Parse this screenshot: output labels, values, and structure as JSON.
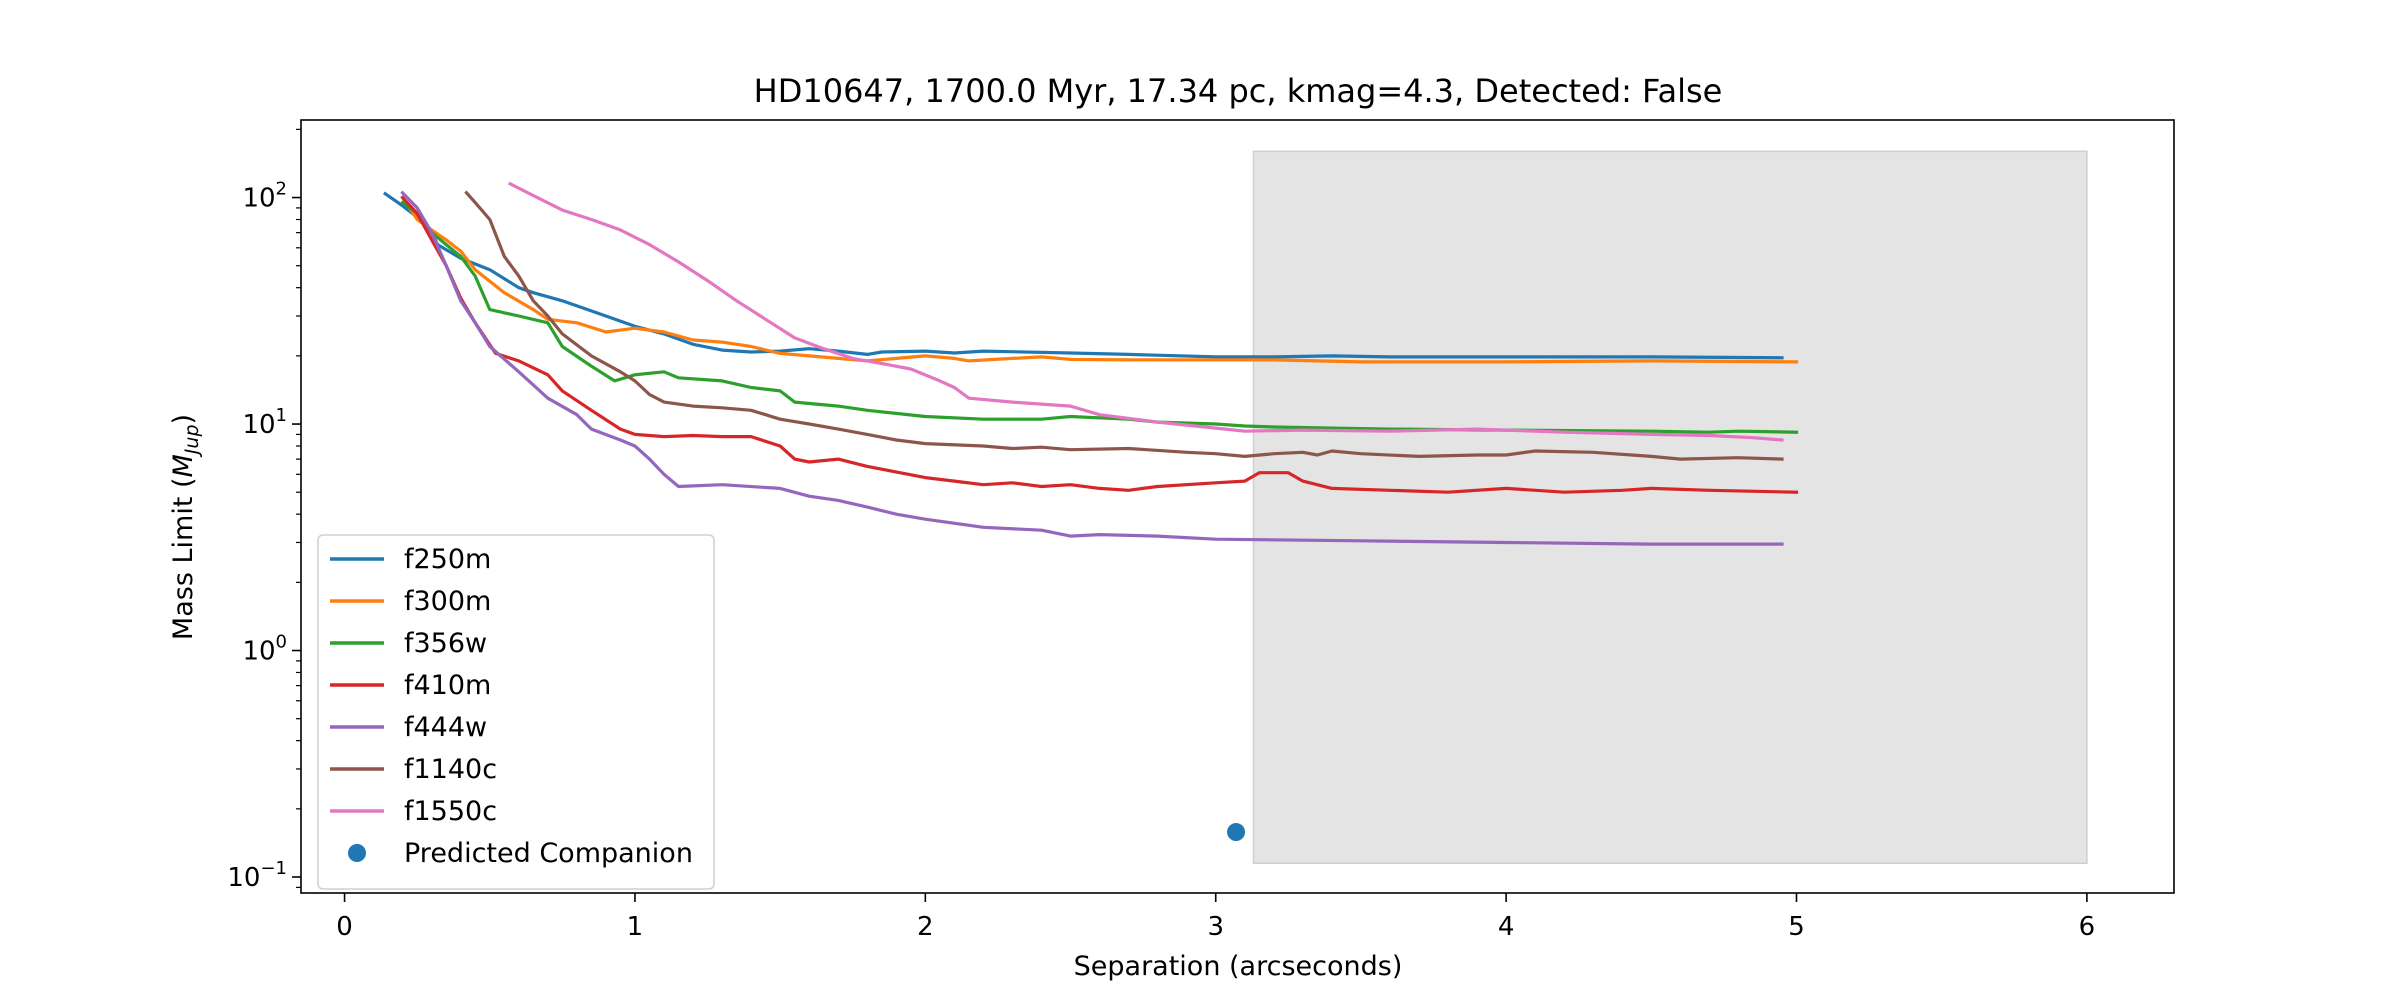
{
  "chart_data": {
    "type": "line",
    "title": "HD10647, 1700.0 Myr, 17.34 pc, kmag=4.3, Detected: False",
    "xlabel": "Separation (arcseconds)",
    "ylabel": "Mass Limit (M_Jup)",
    "ylabel_main": "Mass Limit (",
    "ylabel_sym": "M",
    "ylabel_sub": "Jup",
    "ylabel_close": ")",
    "xlim": [
      -0.15,
      6.3
    ],
    "ylim": [
      0.085,
      220
    ],
    "yscale": "log",
    "grid": false,
    "legend_position": "lower-left",
    "x_ticks": [
      {
        "value": 0,
        "label": "0"
      },
      {
        "value": 1,
        "label": "1"
      },
      {
        "value": 2,
        "label": "2"
      },
      {
        "value": 3,
        "label": "3"
      },
      {
        "value": 4,
        "label": "4"
      },
      {
        "value": 5,
        "label": "5"
      },
      {
        "value": 6,
        "label": "6"
      }
    ],
    "y_ticks": [
      {
        "value": 0.1,
        "base": "10",
        "exp": "−1"
      },
      {
        "value": 1,
        "base": "10",
        "exp": "0"
      },
      {
        "value": 10,
        "base": "10",
        "exp": "1"
      },
      {
        "value": 100,
        "base": "10",
        "exp": "2"
      }
    ],
    "shaded_region": {
      "x": [
        3.13,
        6.0
      ],
      "y": [
        0.115,
        160
      ],
      "color": "#e4e4e4"
    },
    "series": [
      {
        "name": "f250m",
        "color": "#1f77b4",
        "points": [
          [
            0.14,
            104
          ],
          [
            0.2,
            92
          ],
          [
            0.25,
            82
          ],
          [
            0.3,
            70
          ],
          [
            0.32,
            62
          ],
          [
            0.4,
            54
          ],
          [
            0.5,
            48
          ],
          [
            0.6,
            40
          ],
          [
            0.65,
            38
          ],
          [
            0.75,
            35
          ],
          [
            0.9,
            30
          ],
          [
            1.0,
            27
          ],
          [
            1.1,
            25
          ],
          [
            1.2,
            22.5
          ],
          [
            1.3,
            21.2
          ],
          [
            1.4,
            20.8
          ],
          [
            1.5,
            21
          ],
          [
            1.6,
            21.5
          ],
          [
            1.7,
            21
          ],
          [
            1.8,
            20.3
          ],
          [
            1.85,
            20.8
          ],
          [
            2.0,
            21
          ],
          [
            2.1,
            20.6
          ],
          [
            2.2,
            21
          ],
          [
            2.5,
            20.6
          ],
          [
            2.7,
            20.3
          ],
          [
            3.0,
            19.8
          ],
          [
            3.2,
            19.8
          ],
          [
            3.4,
            20
          ],
          [
            3.6,
            19.8
          ],
          [
            4.0,
            19.8
          ],
          [
            4.5,
            19.8
          ],
          [
            4.95,
            19.6
          ]
        ]
      },
      {
        "name": "f300m",
        "color": "#ff7f0e",
        "points": [
          [
            0.2,
            100
          ],
          [
            0.25,
            80
          ],
          [
            0.3,
            72
          ],
          [
            0.35,
            65
          ],
          [
            0.4,
            58
          ],
          [
            0.45,
            48
          ],
          [
            0.55,
            38
          ],
          [
            0.65,
            32
          ],
          [
            0.7,
            29
          ],
          [
            0.8,
            28
          ],
          [
            0.9,
            25.5
          ],
          [
            1.0,
            26.5
          ],
          [
            1.1,
            25.5
          ],
          [
            1.2,
            23.5
          ],
          [
            1.3,
            23
          ],
          [
            1.4,
            22
          ],
          [
            1.5,
            20.5
          ],
          [
            1.6,
            20
          ],
          [
            1.7,
            19.5
          ],
          [
            1.8,
            19
          ],
          [
            1.9,
            19.5
          ],
          [
            2.0,
            20
          ],
          [
            2.1,
            19.5
          ],
          [
            2.15,
            19
          ],
          [
            2.3,
            19.5
          ],
          [
            2.4,
            19.8
          ],
          [
            2.5,
            19.3
          ],
          [
            2.7,
            19.2
          ],
          [
            3.0,
            19.2
          ],
          [
            3.2,
            19.2
          ],
          [
            3.5,
            18.8
          ],
          [
            4.0,
            18.8
          ],
          [
            4.5,
            19
          ],
          [
            5.0,
            18.8
          ]
        ]
      },
      {
        "name": "f356w",
        "color": "#2ca02c",
        "points": [
          [
            0.2,
            95
          ],
          [
            0.25,
            85
          ],
          [
            0.3,
            70
          ],
          [
            0.35,
            62
          ],
          [
            0.4,
            55
          ],
          [
            0.45,
            45
          ],
          [
            0.5,
            32
          ],
          [
            0.6,
            30
          ],
          [
            0.7,
            28
          ],
          [
            0.75,
            22
          ],
          [
            0.85,
            18
          ],
          [
            0.93,
            15.5
          ],
          [
            1.0,
            16.5
          ],
          [
            1.1,
            17
          ],
          [
            1.15,
            16
          ],
          [
            1.3,
            15.5
          ],
          [
            1.4,
            14.5
          ],
          [
            1.5,
            14
          ],
          [
            1.55,
            12.5
          ],
          [
            1.7,
            12
          ],
          [
            1.8,
            11.5
          ],
          [
            2.0,
            10.8
          ],
          [
            2.2,
            10.5
          ],
          [
            2.4,
            10.5
          ],
          [
            2.5,
            10.8
          ],
          [
            2.7,
            10.5
          ],
          [
            2.8,
            10.2
          ],
          [
            3.0,
            10
          ],
          [
            3.1,
            9.8
          ],
          [
            3.2,
            9.7
          ],
          [
            3.4,
            9.6
          ],
          [
            3.6,
            9.5
          ],
          [
            4.0,
            9.4
          ],
          [
            4.5,
            9.3
          ],
          [
            4.7,
            9.2
          ],
          [
            4.8,
            9.3
          ],
          [
            5.0,
            9.2
          ]
        ]
      },
      {
        "name": "f410m",
        "color": "#d62728",
        "points": [
          [
            0.2,
            100
          ],
          [
            0.25,
            85
          ],
          [
            0.3,
            65
          ],
          [
            0.35,
            50
          ],
          [
            0.4,
            36
          ],
          [
            0.45,
            28
          ],
          [
            0.52,
            20.5
          ],
          [
            0.6,
            19
          ],
          [
            0.7,
            16.5
          ],
          [
            0.75,
            14
          ],
          [
            0.85,
            11.5
          ],
          [
            0.95,
            9.5
          ],
          [
            1.0,
            9.0
          ],
          [
            1.1,
            8.8
          ],
          [
            1.2,
            8.9
          ],
          [
            1.3,
            8.8
          ],
          [
            1.4,
            8.8
          ],
          [
            1.5,
            8
          ],
          [
            1.55,
            7
          ],
          [
            1.6,
            6.8
          ],
          [
            1.7,
            7
          ],
          [
            1.8,
            6.5
          ],
          [
            2.0,
            5.8
          ],
          [
            2.1,
            5.6
          ],
          [
            2.2,
            5.4
          ],
          [
            2.3,
            5.5
          ],
          [
            2.4,
            5.3
          ],
          [
            2.5,
            5.4
          ],
          [
            2.6,
            5.2
          ],
          [
            2.7,
            5.1
          ],
          [
            2.8,
            5.3
          ],
          [
            3.0,
            5.5
          ],
          [
            3.1,
            5.6
          ],
          [
            3.15,
            6.1
          ],
          [
            3.25,
            6.1
          ],
          [
            3.3,
            5.6
          ],
          [
            3.4,
            5.2
          ],
          [
            3.6,
            5.1
          ],
          [
            3.8,
            5.0
          ],
          [
            4.0,
            5.2
          ],
          [
            4.2,
            5.0
          ],
          [
            4.4,
            5.1
          ],
          [
            4.5,
            5.2
          ],
          [
            4.7,
            5.1
          ],
          [
            5.0,
            5.0
          ]
        ]
      },
      {
        "name": "f444w",
        "color": "#9467bd",
        "points": [
          [
            0.2,
            105
          ],
          [
            0.25,
            90
          ],
          [
            0.3,
            70
          ],
          [
            0.35,
            50
          ],
          [
            0.4,
            35
          ],
          [
            0.45,
            28
          ],
          [
            0.5,
            22
          ],
          [
            0.6,
            17
          ],
          [
            0.7,
            13
          ],
          [
            0.8,
            11
          ],
          [
            0.85,
            9.5
          ],
          [
            0.95,
            8.5
          ],
          [
            1.0,
            8
          ],
          [
            1.05,
            7
          ],
          [
            1.1,
            6
          ],
          [
            1.15,
            5.3
          ],
          [
            1.3,
            5.4
          ],
          [
            1.5,
            5.2
          ],
          [
            1.6,
            4.8
          ],
          [
            1.7,
            4.6
          ],
          [
            1.8,
            4.3
          ],
          [
            1.9,
            4
          ],
          [
            2.0,
            3.8
          ],
          [
            2.2,
            3.5
          ],
          [
            2.4,
            3.4
          ],
          [
            2.5,
            3.2
          ],
          [
            2.6,
            3.25
          ],
          [
            2.8,
            3.2
          ],
          [
            3.0,
            3.1
          ],
          [
            3.5,
            3.05
          ],
          [
            4.0,
            3.0
          ],
          [
            4.5,
            2.95
          ],
          [
            4.95,
            2.95
          ]
        ]
      },
      {
        "name": "f1140c",
        "color": "#8c564b",
        "points": [
          [
            0.42,
            105
          ],
          [
            0.45,
            95
          ],
          [
            0.5,
            80
          ],
          [
            0.55,
            55
          ],
          [
            0.6,
            45
          ],
          [
            0.65,
            35
          ],
          [
            0.7,
            30
          ],
          [
            0.75,
            25
          ],
          [
            0.85,
            20
          ],
          [
            0.95,
            17
          ],
          [
            1.0,
            15.5
          ],
          [
            1.05,
            13.5
          ],
          [
            1.1,
            12.5
          ],
          [
            1.2,
            12
          ],
          [
            1.3,
            11.8
          ],
          [
            1.4,
            11.5
          ],
          [
            1.45,
            11
          ],
          [
            1.5,
            10.5
          ],
          [
            1.6,
            10
          ],
          [
            1.7,
            9.5
          ],
          [
            1.8,
            9
          ],
          [
            1.9,
            8.5
          ],
          [
            2.0,
            8.2
          ],
          [
            2.2,
            8
          ],
          [
            2.3,
            7.8
          ],
          [
            2.4,
            7.9
          ],
          [
            2.5,
            7.7
          ],
          [
            2.7,
            7.8
          ],
          [
            2.9,
            7.5
          ],
          [
            3.0,
            7.4
          ],
          [
            3.1,
            7.2
          ],
          [
            3.2,
            7.4
          ],
          [
            3.3,
            7.5
          ],
          [
            3.35,
            7.3
          ],
          [
            3.4,
            7.6
          ],
          [
            3.5,
            7.4
          ],
          [
            3.7,
            7.2
          ],
          [
            3.9,
            7.3
          ],
          [
            4.0,
            7.3
          ],
          [
            4.1,
            7.6
          ],
          [
            4.3,
            7.5
          ],
          [
            4.5,
            7.2
          ],
          [
            4.6,
            7.0
          ],
          [
            4.8,
            7.1
          ],
          [
            4.95,
            7.0
          ]
        ]
      },
      {
        "name": "f1550c",
        "color": "#e377c2",
        "points": [
          [
            0.57,
            115
          ],
          [
            0.65,
            102
          ],
          [
            0.75,
            88
          ],
          [
            0.85,
            80
          ],
          [
            0.95,
            72
          ],
          [
            1.05,
            62
          ],
          [
            1.15,
            52
          ],
          [
            1.25,
            43
          ],
          [
            1.35,
            35
          ],
          [
            1.45,
            29
          ],
          [
            1.55,
            24
          ],
          [
            1.65,
            21.5
          ],
          [
            1.75,
            19.5
          ],
          [
            1.85,
            18.5
          ],
          [
            1.95,
            17.5
          ],
          [
            2.05,
            15.5
          ],
          [
            2.1,
            14.5
          ],
          [
            2.15,
            13
          ],
          [
            2.3,
            12.5
          ],
          [
            2.5,
            12
          ],
          [
            2.6,
            11
          ],
          [
            2.8,
            10.2
          ],
          [
            3.0,
            9.6
          ],
          [
            3.1,
            9.3
          ],
          [
            3.3,
            9.4
          ],
          [
            3.6,
            9.3
          ],
          [
            3.9,
            9.5
          ],
          [
            4.2,
            9.2
          ],
          [
            4.5,
            9.0
          ],
          [
            4.7,
            8.9
          ],
          [
            4.85,
            8.7
          ],
          [
            4.95,
            8.5
          ]
        ]
      }
    ],
    "scatter_series": [
      {
        "name": "Predicted Companion",
        "color": "#1f77b4",
        "points": [
          [
            3.07,
            0.158
          ]
        ]
      }
    ]
  }
}
